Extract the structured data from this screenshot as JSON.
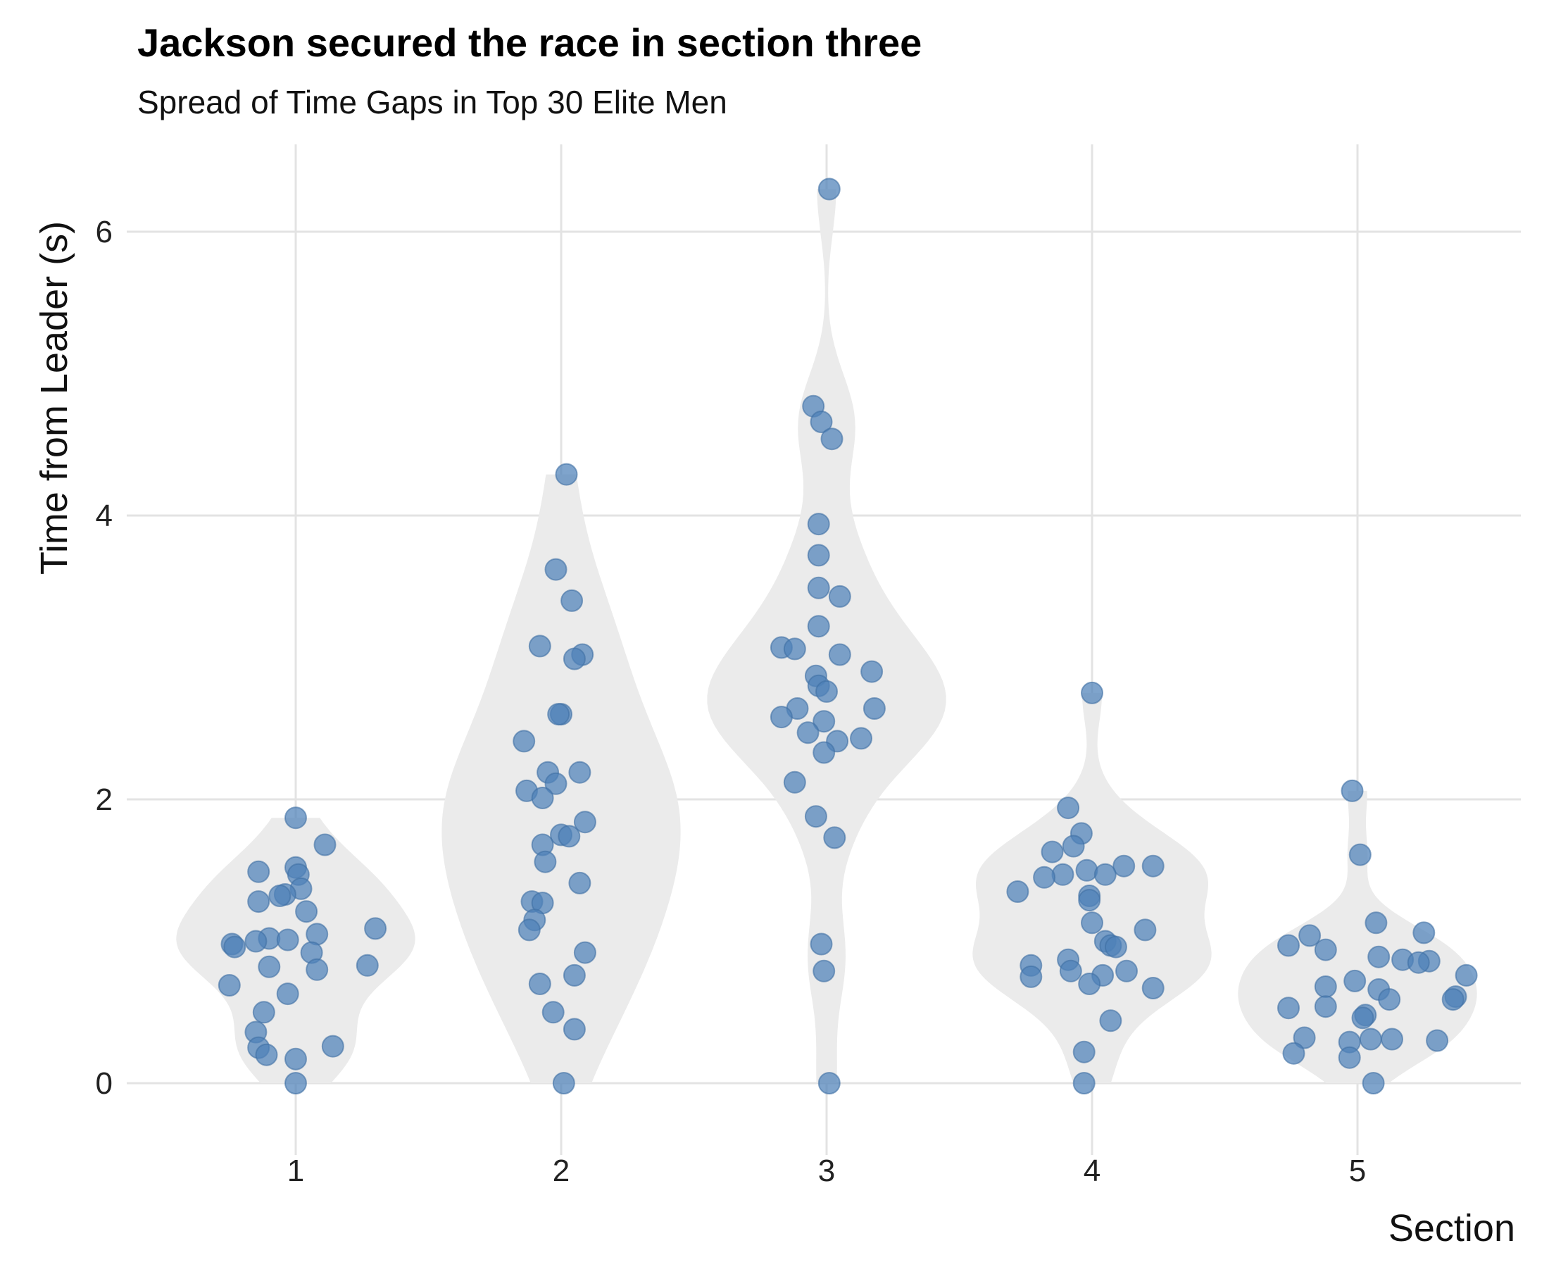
{
  "chart_data": {
    "type": "violin",
    "title": "Jackson secured the race in section three",
    "subtitle": "Spread of Time Gaps in Top 30 Elite Men",
    "xlabel": "Section",
    "ylabel": "Time from Leader (s)",
    "categories": [
      "1",
      "2",
      "3",
      "4",
      "5"
    ],
    "yticks": [
      0,
      2,
      4,
      6
    ],
    "ylim": [
      -0.3,
      6.6
    ],
    "grid": true,
    "legend": "none",
    "colors": {
      "points": "#4e81b8",
      "violin": "#ebebeb",
      "grid": "#e3e3e3"
    },
    "series": [
      {
        "category": "1",
        "points": [
          {
            "dx": 0.0,
            "y": 1.87
          },
          {
            "dx": 0.11,
            "y": 1.68
          },
          {
            "dx": 0.0,
            "y": 1.52
          },
          {
            "dx": 0.01,
            "y": 1.47
          },
          {
            "dx": -0.14,
            "y": 1.49
          },
          {
            "dx": 0.02,
            "y": 1.37
          },
          {
            "dx": -0.04,
            "y": 1.33
          },
          {
            "dx": -0.06,
            "y": 1.32
          },
          {
            "dx": -0.14,
            "y": 1.28
          },
          {
            "dx": 0.04,
            "y": 1.21
          },
          {
            "dx": 0.3,
            "y": 1.09
          },
          {
            "dx": 0.08,
            "y": 1.05
          },
          {
            "dx": -0.1,
            "y": 1.02
          },
          {
            "dx": -0.03,
            "y": 1.01
          },
          {
            "dx": -0.15,
            "y": 1.0
          },
          {
            "dx": -0.24,
            "y": 0.98
          },
          {
            "dx": -0.23,
            "y": 0.96
          },
          {
            "dx": 0.06,
            "y": 0.92
          },
          {
            "dx": 0.27,
            "y": 0.83
          },
          {
            "dx": -0.1,
            "y": 0.82
          },
          {
            "dx": 0.08,
            "y": 0.8
          },
          {
            "dx": -0.25,
            "y": 0.69
          },
          {
            "dx": -0.03,
            "y": 0.63
          },
          {
            "dx": -0.12,
            "y": 0.5
          },
          {
            "dx": -0.15,
            "y": 0.36
          },
          {
            "dx": 0.14,
            "y": 0.26
          },
          {
            "dx": -0.14,
            "y": 0.25
          },
          {
            "dx": -0.11,
            "y": 0.2
          },
          {
            "dx": 0.0,
            "y": 0.17
          },
          {
            "dx": 0.0,
            "y": 0.0
          }
        ]
      },
      {
        "category": "2",
        "points": [
          {
            "dx": 0.02,
            "y": 4.29
          },
          {
            "dx": -0.02,
            "y": 3.62
          },
          {
            "dx": 0.04,
            "y": 3.4
          },
          {
            "dx": -0.08,
            "y": 3.08
          },
          {
            "dx": 0.08,
            "y": 3.02
          },
          {
            "dx": 0.05,
            "y": 2.99
          },
          {
            "dx": 0.0,
            "y": 2.6
          },
          {
            "dx": -0.01,
            "y": 2.6
          },
          {
            "dx": -0.14,
            "y": 2.41
          },
          {
            "dx": 0.07,
            "y": 2.19
          },
          {
            "dx": -0.05,
            "y": 2.19
          },
          {
            "dx": -0.02,
            "y": 2.11
          },
          {
            "dx": -0.13,
            "y": 2.06
          },
          {
            "dx": -0.07,
            "y": 2.01
          },
          {
            "dx": 0.09,
            "y": 1.84
          },
          {
            "dx": 0.0,
            "y": 1.75
          },
          {
            "dx": 0.03,
            "y": 1.74
          },
          {
            "dx": -0.07,
            "y": 1.68
          },
          {
            "dx": -0.06,
            "y": 1.56
          },
          {
            "dx": 0.07,
            "y": 1.41
          },
          {
            "dx": -0.11,
            "y": 1.28
          },
          {
            "dx": -0.07,
            "y": 1.27
          },
          {
            "dx": -0.1,
            "y": 1.15
          },
          {
            "dx": -0.12,
            "y": 1.08
          },
          {
            "dx": 0.09,
            "y": 0.92
          },
          {
            "dx": 0.05,
            "y": 0.76
          },
          {
            "dx": -0.08,
            "y": 0.7
          },
          {
            "dx": -0.03,
            "y": 0.5
          },
          {
            "dx": 0.05,
            "y": 0.38
          },
          {
            "dx": 0.01,
            "y": 0.0
          }
        ]
      },
      {
        "category": "3",
        "points": [
          {
            "dx": 0.01,
            "y": 6.3
          },
          {
            "dx": -0.05,
            "y": 4.77
          },
          {
            "dx": -0.02,
            "y": 4.66
          },
          {
            "dx": 0.02,
            "y": 4.54
          },
          {
            "dx": -0.03,
            "y": 3.94
          },
          {
            "dx": -0.03,
            "y": 3.72
          },
          {
            "dx": -0.03,
            "y": 3.49
          },
          {
            "dx": 0.05,
            "y": 3.43
          },
          {
            "dx": -0.03,
            "y": 3.22
          },
          {
            "dx": -0.17,
            "y": 3.07
          },
          {
            "dx": -0.12,
            "y": 3.06
          },
          {
            "dx": 0.05,
            "y": 3.02
          },
          {
            "dx": 0.17,
            "y": 2.9
          },
          {
            "dx": -0.04,
            "y": 2.87
          },
          {
            "dx": -0.03,
            "y": 2.8
          },
          {
            "dx": 0.0,
            "y": 2.76
          },
          {
            "dx": 0.18,
            "y": 2.64
          },
          {
            "dx": -0.11,
            "y": 2.64
          },
          {
            "dx": -0.17,
            "y": 2.58
          },
          {
            "dx": -0.01,
            "y": 2.55
          },
          {
            "dx": -0.07,
            "y": 2.47
          },
          {
            "dx": 0.13,
            "y": 2.43
          },
          {
            "dx": 0.04,
            "y": 2.41
          },
          {
            "dx": -0.01,
            "y": 2.33
          },
          {
            "dx": -0.12,
            "y": 2.12
          },
          {
            "dx": -0.04,
            "y": 1.88
          },
          {
            "dx": 0.03,
            "y": 1.73
          },
          {
            "dx": -0.02,
            "y": 0.98
          },
          {
            "dx": -0.01,
            "y": 0.79
          },
          {
            "dx": 0.01,
            "y": 0.0
          }
        ]
      },
      {
        "category": "4",
        "points": [
          {
            "dx": 0.0,
            "y": 2.75
          },
          {
            "dx": -0.09,
            "y": 1.94
          },
          {
            "dx": -0.04,
            "y": 1.76
          },
          {
            "dx": -0.07,
            "y": 1.67
          },
          {
            "dx": -0.15,
            "y": 1.63
          },
          {
            "dx": 0.23,
            "y": 1.53
          },
          {
            "dx": 0.12,
            "y": 1.53
          },
          {
            "dx": -0.02,
            "y": 1.5
          },
          {
            "dx": 0.05,
            "y": 1.47
          },
          {
            "dx": -0.11,
            "y": 1.47
          },
          {
            "dx": -0.18,
            "y": 1.45
          },
          {
            "dx": -0.28,
            "y": 1.35
          },
          {
            "dx": -0.01,
            "y": 1.32
          },
          {
            "dx": -0.01,
            "y": 1.29
          },
          {
            "dx": 0.0,
            "y": 1.13
          },
          {
            "dx": 0.2,
            "y": 1.08
          },
          {
            "dx": 0.05,
            "y": 1.0
          },
          {
            "dx": 0.07,
            "y": 0.97
          },
          {
            "dx": 0.09,
            "y": 0.96
          },
          {
            "dx": -0.09,
            "y": 0.87
          },
          {
            "dx": -0.23,
            "y": 0.83
          },
          {
            "dx": -0.08,
            "y": 0.79
          },
          {
            "dx": 0.13,
            "y": 0.79
          },
          {
            "dx": 0.04,
            "y": 0.76
          },
          {
            "dx": -0.23,
            "y": 0.75
          },
          {
            "dx": -0.01,
            "y": 0.7
          },
          {
            "dx": 0.23,
            "y": 0.67
          },
          {
            "dx": 0.07,
            "y": 0.44
          },
          {
            "dx": -0.03,
            "y": 0.22
          },
          {
            "dx": -0.03,
            "y": 0.0
          }
        ]
      },
      {
        "category": "5",
        "points": [
          {
            "dx": -0.02,
            "y": 2.06
          },
          {
            "dx": 0.01,
            "y": 1.61
          },
          {
            "dx": 0.07,
            "y": 1.13
          },
          {
            "dx": 0.25,
            "y": 1.06
          },
          {
            "dx": -0.18,
            "y": 1.04
          },
          {
            "dx": -0.26,
            "y": 0.97
          },
          {
            "dx": -0.12,
            "y": 0.94
          },
          {
            "dx": 0.08,
            "y": 0.89
          },
          {
            "dx": 0.17,
            "y": 0.87
          },
          {
            "dx": 0.27,
            "y": 0.86
          },
          {
            "dx": 0.23,
            "y": 0.85
          },
          {
            "dx": 0.41,
            "y": 0.76
          },
          {
            "dx": -0.01,
            "y": 0.72
          },
          {
            "dx": -0.12,
            "y": 0.68
          },
          {
            "dx": 0.08,
            "y": 0.66
          },
          {
            "dx": 0.37,
            "y": 0.61
          },
          {
            "dx": 0.36,
            "y": 0.59
          },
          {
            "dx": 0.12,
            "y": 0.59
          },
          {
            "dx": -0.26,
            "y": 0.53
          },
          {
            "dx": -0.12,
            "y": 0.54
          },
          {
            "dx": 0.03,
            "y": 0.48
          },
          {
            "dx": 0.02,
            "y": 0.46
          },
          {
            "dx": -0.2,
            "y": 0.32
          },
          {
            "dx": 0.05,
            "y": 0.31
          },
          {
            "dx": 0.3,
            "y": 0.3
          },
          {
            "dx": 0.13,
            "y": 0.31
          },
          {
            "dx": -0.03,
            "y": 0.29
          },
          {
            "dx": -0.24,
            "y": 0.21
          },
          {
            "dx": -0.03,
            "y": 0.18
          },
          {
            "dx": 0.06,
            "y": 0.0
          }
        ]
      }
    ]
  }
}
